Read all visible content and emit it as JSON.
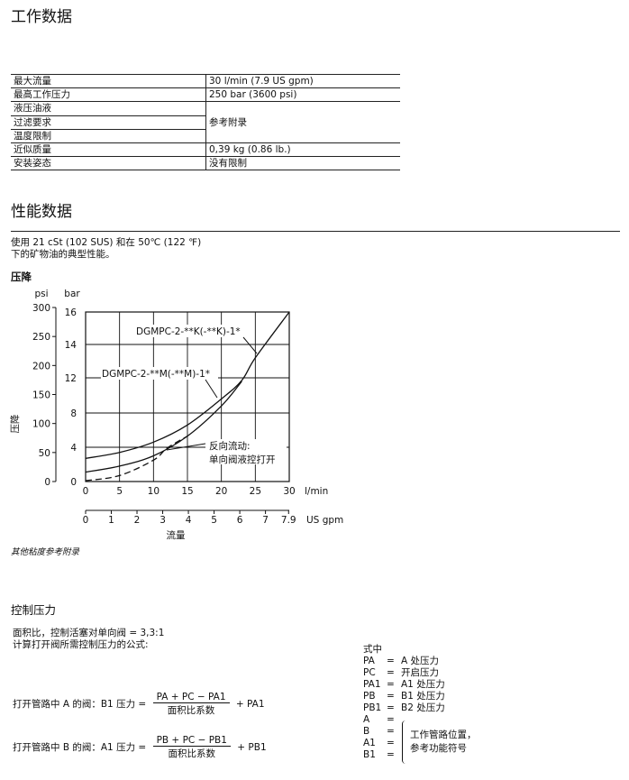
{
  "work_data": {
    "title": "工作数据",
    "rows": [
      {
        "label": "最大流量",
        "value": "30 l/min (7.9 US gpm)"
      },
      {
        "label": "最高工作压力",
        "value": "250 bar (3600 psi)"
      },
      {
        "label": "液压油液",
        "value": ""
      },
      {
        "label": "过滤要求",
        "value": "参考附录"
      },
      {
        "label": "温度限制",
        "value": ""
      },
      {
        "label": "近似质量",
        "value": "0,39 kg (0.86 lb.)"
      },
      {
        "label": "安装姿态",
        "value": "没有限制"
      }
    ]
  },
  "performance": {
    "title": "性能数据",
    "desc1": "使用 21 cSt (102 SUS) 和在 50℃ (122 ℉)",
    "desc2": "下的矿物油的典型性能。",
    "subtitle": "压降",
    "note": "其他粘度参考附录"
  },
  "chart_data": {
    "type": "line",
    "title": "压降",
    "xlabel": "流量",
    "ylabel": "压降",
    "x_unit": "l/min",
    "x2_unit": "US gpm",
    "y_unit": "bar",
    "y2_unit": "psi",
    "x_ticks": [
      0,
      5,
      10,
      15,
      20,
      25,
      30
    ],
    "x2_ticks": [
      "0",
      "1",
      "2",
      "3",
      "4",
      "5",
      "6",
      "7",
      "7.9"
    ],
    "y_ticks": [
      0,
      4,
      8,
      12,
      14,
      16
    ],
    "y2_ticks": [
      0,
      50,
      100,
      150,
      200,
      250,
      300
    ],
    "xlim": [
      0,
      30
    ],
    "grid": true,
    "series": [
      {
        "name": "DGMPC-2-**K(-**K)-1*",
        "style": "solid",
        "x": [
          0,
          5,
          10,
          15,
          20,
          23,
          25,
          30
        ],
        "y": [
          2.7,
          3.4,
          4.6,
          6.6,
          9.6,
          11.7,
          13.2,
          16
        ]
      },
      {
        "name": "DGMPC-2-**M(-**M)-1*",
        "style": "solid",
        "x": [
          0,
          5,
          10,
          15,
          20,
          23
        ],
        "y": [
          1.1,
          1.8,
          3.0,
          5.3,
          8.8,
          11.6
        ]
      },
      {
        "name": "反向流动:单向阀液控打开",
        "style": "dashed",
        "x": [
          0,
          5,
          10,
          12,
          15
        ],
        "y": [
          0.1,
          0.7,
          2.5,
          3.9,
          5.3
        ]
      }
    ],
    "annotations": [
      "DGMPC-2-**K(-**K)-1*",
      "DGMPC-2-**M(-**M)-1*",
      "反向流动:",
      "单向阀液控打开"
    ]
  },
  "control": {
    "title": "控制压力",
    "line1": "面积比，控制活塞对单向阀 = 3,3:1",
    "line2": "计算打开阀所需控制压力的公式:",
    "f1_label": "打开管路中 A 的阀：B1 压力 =",
    "f1_num": "PA + PC − PA1",
    "f1_den": "面积比系数",
    "f1_tail": "+ PA1",
    "f2_label": "打开管路中 B 的阀：A1 压力 =",
    "f2_num": "PB + PC − PB1",
    "f2_den": "面积比系数",
    "f2_tail": "+ PB1",
    "where": "式中",
    "legend": [
      {
        "sym": "PA",
        "def": "A 处压力"
      },
      {
        "sym": "PC",
        "def": "开启压力"
      },
      {
        "sym": "PA1",
        "def": "A1 处压力"
      },
      {
        "sym": "PB",
        "def": "B1 处压力"
      },
      {
        "sym": "PB1",
        "def": "B2 处压力"
      },
      {
        "sym": "A",
        "def": ""
      },
      {
        "sym": "B",
        "def": ""
      },
      {
        "sym": "A1",
        "def": ""
      },
      {
        "sym": "B1",
        "def": ""
      }
    ],
    "brace_text1": "工作管路位置，",
    "brace_text2": "参考功能符号"
  }
}
